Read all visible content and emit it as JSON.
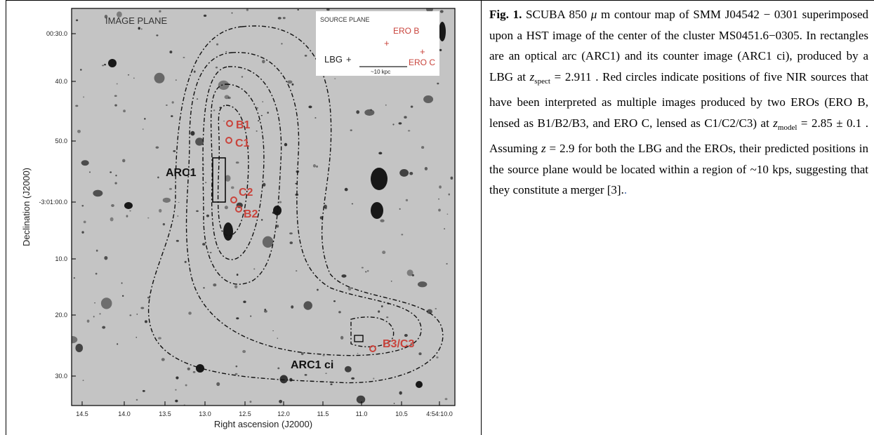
{
  "figure": {
    "image_plane": "IMAGE PLANE",
    "inset": {
      "title": "SOURCE PLANE",
      "ero_b": "ERO B",
      "ero_c": "ERO C",
      "lbg": "LBG",
      "scale": "~10 kpc"
    },
    "labels": {
      "arc1": "ARC1",
      "arc1_ci": "ARC1 ci",
      "b1": "B1",
      "c1": "C1",
      "c2": "C2",
      "b2": "B2",
      "b3c3": "B3/C3"
    },
    "y_ticks": [
      "00:30.0",
      "40.0",
      "50.0",
      "-3:01:00.0",
      "10.0",
      "20.0",
      "30.0"
    ],
    "x_ticks": [
      "14.5",
      "14.0",
      "13.5",
      "13.0",
      "12.5",
      "12.0",
      "11.5",
      "11.0",
      "10.5",
      "4:54:10.0"
    ],
    "y_label": "Declination (J2000)",
    "x_label": "Right ascension (J2000)"
  },
  "caption": {
    "label": "Fig. 1.",
    "parts": [
      {
        "text": " SCUBA 850 "
      },
      {
        "italic": "μ"
      },
      {
        "text": " m contour map of SMM J04542 − 0301 superimposed upon a HST image of the center of the cluster MS0451.6−0305. In rectangles are an optical arc (ARC1) and its counter image (ARC1 ci), produced by a LBG at "
      },
      {
        "italic": "z",
        "sub": "spect"
      },
      {
        "text": " = 2.911 . Red circles indicate positions of five NIR sources that have been interpreted as multiple images produced by two EROs (ERO B, lensed as B1/B2/B3, and ERO C, lensed as C1/C2/C3) at "
      },
      {
        "italic": "z",
        "sub": "model"
      },
      {
        "text": " = 2.85 ± 0.1 . Assuming "
      },
      {
        "italic": "z"
      },
      {
        "text": " = 2.9 for both the LBG and the EROs, their predicted positions in the source plane would be located within a region of ~10 kps, suggesting that they constitute a merger [3]."
      },
      {
        "link": "."
      }
    ]
  }
}
